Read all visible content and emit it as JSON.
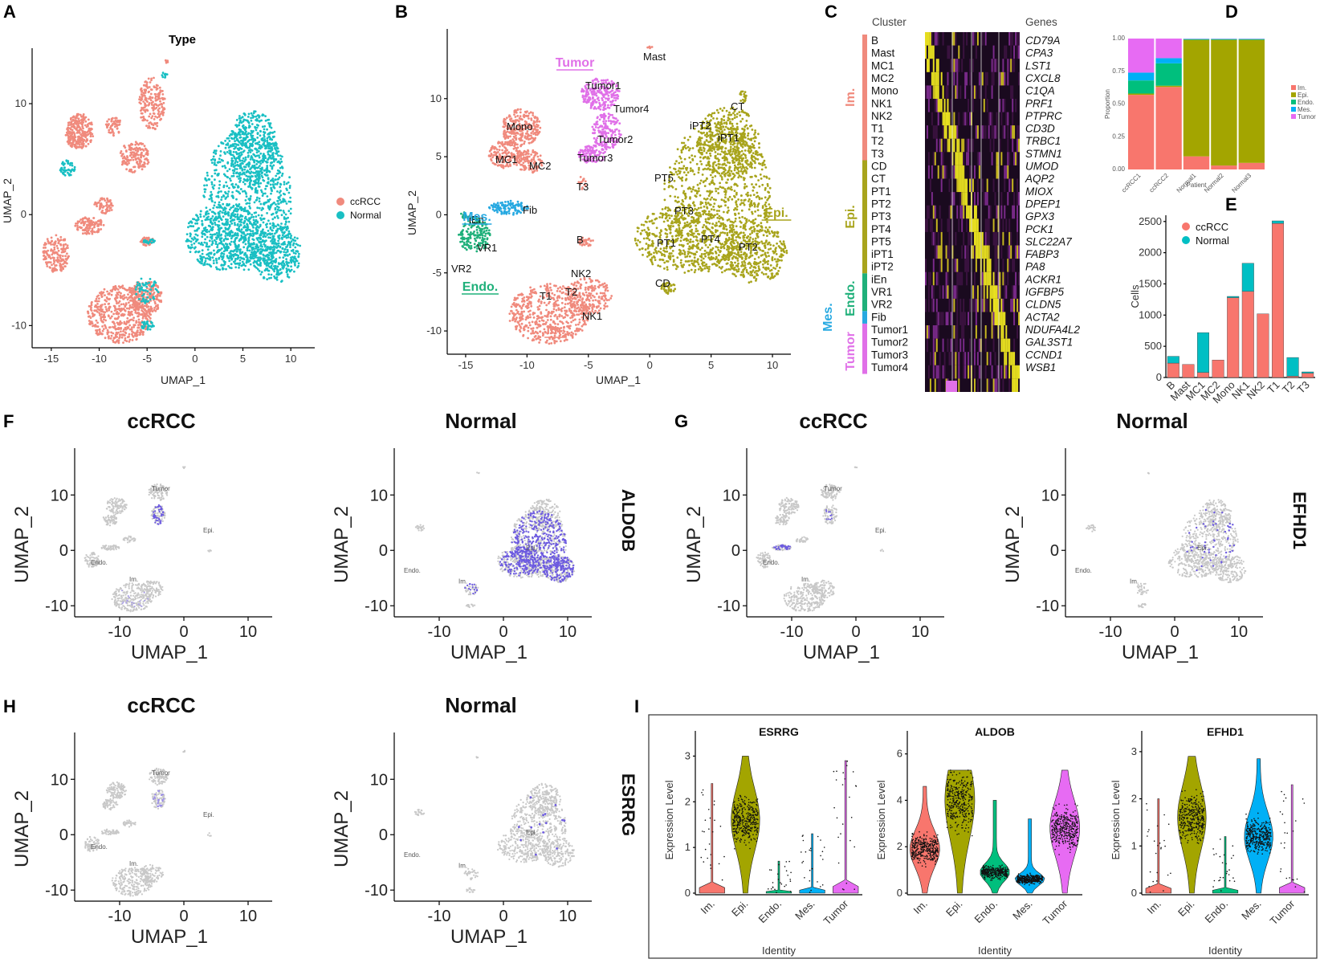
{
  "panels": {
    "A": {
      "letter": "A",
      "title": "Type",
      "xlabel": "UMAP_1",
      "ylabel": "UMAP_2",
      "xticks": [
        "-15",
        "-10",
        "-5",
        "0",
        "5",
        "10"
      ],
      "yticks": [
        "10",
        "0",
        "-10"
      ],
      "legend": [
        {
          "label": "ccRCC",
          "color": "#F08A7D"
        },
        {
          "label": "Normal",
          "color": "#19BFC3"
        }
      ]
    },
    "B": {
      "letter": "B",
      "xlabel": "UMAP_1",
      "ylabel": "UMAP_2",
      "xticks": [
        "-15",
        "-10",
        "-5",
        "0",
        "5",
        "10"
      ],
      "yticks": [
        "10",
        "5",
        "0",
        "-5",
        "-10"
      ],
      "clusters": [
        "Mast",
        "Tumor1",
        "Tumor4",
        "Tumor2",
        "Tumor3",
        "T3",
        "Mono",
        "MC1",
        "MC2",
        "Fib",
        "iEn",
        "VR1",
        "VR2",
        "B",
        "NK2",
        "T1",
        "T2",
        "NK1",
        "CT",
        "iPT2",
        "iPT1",
        "PT5",
        "PT3",
        "PT1",
        "PT4",
        "PT2",
        "CD"
      ],
      "groups": [
        {
          "label": "Tumor",
          "color": "#E070E8"
        },
        {
          "label": "Mes.",
          "color": "#27A9E1"
        },
        {
          "label": "Endo.",
          "color": "#1FB07A"
        },
        {
          "label": "Im.",
          "color": "#F08A7D"
        },
        {
          "label": "Epi.",
          "color": "#A8A41C"
        }
      ]
    },
    "C": {
      "letter": "C",
      "col_cluster": "Cluster",
      "col_genes": "Genes",
      "rows": [
        "B",
        "Mast",
        "MC1",
        "MC2",
        "Mono",
        "NK1",
        "NK2",
        "T1",
        "T2",
        "T3",
        "CD",
        "CT",
        "PT1",
        "PT2",
        "PT3",
        "PT4",
        "PT5",
        "iPT1",
        "iPT2",
        "iEn",
        "VR1",
        "VR2",
        "Fib",
        "Tumor1",
        "Tumor2",
        "Tumor3",
        "Tumor4"
      ],
      "genes": [
        "CD79A",
        "CPA3",
        "LST1",
        "CXCL8",
        "C1QA",
        "PRF1",
        "PTPRC",
        "CD3D",
        "TRBC1",
        "STMN1",
        "UMOD",
        "AQP2",
        "MIOX",
        "DPEP1",
        "GPX3",
        "PCK1",
        "SLC22A7",
        "FABP3",
        "PA8",
        "ACKR1",
        "IGFBP5",
        "CLDN5",
        "ACTA2",
        "NDUFA4L2",
        "GAL3ST1",
        "CCND1",
        "WSB1"
      ],
      "groups": [
        "Im.",
        "Epi.",
        "Endo.",
        "Mes.",
        "Tumor"
      ]
    },
    "D": {
      "letter": "D",
      "ylabel": "Proportion",
      "xlabel": "Patient",
      "yticks": [
        "0.00",
        "0.25",
        "0.50",
        "0.75",
        "1.00"
      ],
      "legend": [
        "Im.",
        "Epi.",
        "Endo.",
        "Mes.",
        "Tumor"
      ]
    },
    "E": {
      "letter": "E",
      "ylabel": "Cells",
      "yticks": [
        "0",
        "500",
        "1000",
        "1500",
        "2000",
        "2500"
      ],
      "legend": [
        "ccRCC",
        "Normal"
      ]
    },
    "F": {
      "letter": "F",
      "gene": "ALDOB"
    },
    "G": {
      "letter": "G",
      "gene": "EFHD1"
    },
    "H": {
      "letter": "H",
      "gene": "ESRRG"
    },
    "I": {
      "letter": "I",
      "xlabel": "Identity",
      "ylabel": "Expression Level"
    },
    "featureplot": {
      "left_title": "ccRCC",
      "right_title": "Normal",
      "xlabel": "UMAP_1",
      "ylabel": "UMAP_2",
      "xticks": [
        "-10",
        "0",
        "10"
      ],
      "yticks": [
        "10",
        "0",
        "-10"
      ],
      "map_labels": [
        "Tumor",
        "Epi.",
        "Endo.",
        "Im."
      ]
    }
  },
  "chart_data": [
    {
      "panel": "D",
      "type": "bar",
      "stacked": true,
      "categories": [
        "ccRCC1",
        "ccRCC2",
        "Normal1",
        "Normal2",
        "Normal3"
      ],
      "series": [
        {
          "name": "Im.",
          "color": "#F8766D",
          "values": [
            0.57,
            0.63,
            0.1,
            0.03,
            0.05
          ]
        },
        {
          "name": "Epi.",
          "color": "#A3A500",
          "values": [
            0.01,
            0.01,
            0.89,
            0.96,
            0.94
          ]
        },
        {
          "name": "Endo.",
          "color": "#00BF7D",
          "values": [
            0.1,
            0.17,
            0.005,
            0.005,
            0.005
          ]
        },
        {
          "name": "Mes.",
          "color": "#00B0F6",
          "values": [
            0.06,
            0.04,
            0.003,
            0.003,
            0.003
          ]
        },
        {
          "name": "Tumor",
          "color": "#E76BF3",
          "values": [
            0.26,
            0.15,
            0.002,
            0.002,
            0.002
          ]
        }
      ],
      "ylim": [
        0,
        1
      ]
    },
    {
      "panel": "E",
      "type": "bar",
      "stacked": true,
      "categories": [
        "B",
        "Mast",
        "MC1",
        "MC2",
        "Mono",
        "NK1",
        "NK2",
        "T1",
        "T2",
        "T3"
      ],
      "series": [
        {
          "name": "ccRCC",
          "color": "#F8766D",
          "values": [
            230,
            210,
            80,
            280,
            1280,
            1380,
            1020,
            2470,
            20,
            70
          ]
        },
        {
          "name": "Normal",
          "color": "#00BFC4",
          "values": [
            110,
            0,
            640,
            0,
            20,
            450,
            0,
            40,
            300,
            20
          ]
        }
      ],
      "ylim": [
        0,
        2600
      ]
    },
    {
      "panel": "I",
      "type": "violin",
      "genes": [
        "ESRRG",
        "ALDOB",
        "EFHD1"
      ],
      "categories": [
        "Im.",
        "Epi.",
        "Endo.",
        "Mes.",
        "Tumor"
      ],
      "colors": [
        "#F8766D",
        "#A3A500",
        "#00BF7D",
        "#00B0F6",
        "#E76BF3"
      ],
      "ylims": [
        [
          0,
          3.2
        ],
        [
          0,
          6.3
        ],
        [
          0,
          3.1
        ]
      ],
      "yticks": [
        [
          "0",
          "1",
          "2",
          "3"
        ],
        [
          "0",
          "2",
          "4",
          "6"
        ],
        [
          "0",
          "1",
          "2",
          "3"
        ]
      ],
      "medians": [
        [
          0,
          1.6,
          0,
          0,
          0
        ],
        [
          1.9,
          4,
          0.9,
          0.6,
          2.8
        ],
        [
          0,
          1.6,
          0,
          1.2,
          0.3
        ]
      ],
      "max": [
        [
          2.4,
          3.0,
          0.7,
          1.3,
          2.9
        ],
        [
          4.6,
          5.3,
          4.0,
          3.2,
          5.3
        ],
        [
          2.0,
          2.9,
          1.2,
          2.85,
          2.3
        ]
      ]
    }
  ]
}
